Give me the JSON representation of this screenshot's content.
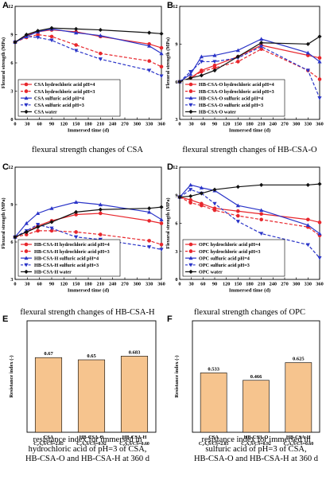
{
  "chart_data": [
    {
      "id": "A",
      "panel_letter": "A",
      "type": "line",
      "caption": "flexural strength changes of CSA",
      "xlabel": "Immersed time (d)",
      "ylabel": "Flexural strength (MPa)",
      "xlim": [
        0,
        360
      ],
      "ylim": [
        0,
        12
      ],
      "x_ticks": [
        0,
        30,
        60,
        90,
        120,
        150,
        180,
        210,
        240,
        270,
        300,
        330,
        360
      ],
      "y_ticks": [
        0,
        3,
        6,
        9,
        12
      ],
      "legend_position": "bottom-left",
      "series": [
        {
          "name": "CSA hydrochloric acid pH=4",
          "color": "#e8262c",
          "marker": "circle",
          "dash": false,
          "x": [
            0,
            28,
            56,
            90,
            150,
            210,
            330,
            360
          ],
          "y": [
            8.2,
            8.9,
            9.3,
            9.5,
            9.3,
            8.8,
            8.0,
            7.6
          ]
        },
        {
          "name": "CSA hydrochloric acid pH=3",
          "color": "#e8262c",
          "marker": "circle",
          "dash": true,
          "x": [
            0,
            28,
            56,
            90,
            150,
            210,
            330,
            360
          ],
          "y": [
            8.2,
            8.7,
            9.0,
            8.8,
            7.9,
            7.0,
            6.2,
            5.6
          ]
        },
        {
          "name": "CSA sulfuric acid pH=4",
          "color": "#2a34c8",
          "marker": "triangle",
          "dash": false,
          "x": [
            0,
            28,
            56,
            90,
            150,
            210,
            330,
            360
          ],
          "y": [
            8.2,
            8.8,
            9.3,
            9.6,
            9.2,
            8.9,
            7.8,
            7.0
          ]
        },
        {
          "name": "CSA sulfuric acid pH=3",
          "color": "#2a34c8",
          "marker": "triangle-down",
          "dash": true,
          "x": [
            0,
            28,
            56,
            90,
            150,
            210,
            330,
            360
          ],
          "y": [
            8.2,
            8.8,
            8.7,
            8.4,
            7.3,
            6.4,
            5.2,
            4.6
          ]
        },
        {
          "name": "CSA water",
          "color": "#111111",
          "marker": "diamond",
          "dash": false,
          "x": [
            0,
            28,
            56,
            90,
            150,
            210,
            330,
            360
          ],
          "y": [
            8.2,
            9.0,
            9.4,
            9.7,
            9.6,
            9.5,
            9.2,
            9.1
          ]
        }
      ]
    },
    {
      "id": "B",
      "panel_letter": "B",
      "type": "line",
      "caption": "flexural strength changes of HB-CSA-O",
      "xlabel": "Immersed time (d)",
      "ylabel": "Flexural strength (MPa)",
      "xlim": [
        0,
        360
      ],
      "ylim": [
        3,
        12
      ],
      "x_ticks": [
        0,
        30,
        60,
        90,
        120,
        150,
        180,
        210,
        240,
        270,
        300,
        330,
        360
      ],
      "y_ticks": [
        3,
        6,
        9,
        12
      ],
      "legend_position": "bottom-left",
      "series": [
        {
          "name": "HB-CSA-O hydrochloric acid pH=4",
          "color": "#e8262c",
          "marker": "circle",
          "dash": false,
          "x": [
            0,
            28,
            56,
            90,
            150,
            210,
            330,
            360
          ],
          "y": [
            6.0,
            6.3,
            6.9,
            7.3,
            8.0,
            8.9,
            8.1,
            7.9
          ]
        },
        {
          "name": "HB-CSA-O hydrochloric acid pH=3",
          "color": "#e8262c",
          "marker": "circle",
          "dash": true,
          "x": [
            0,
            28,
            56,
            90,
            150,
            210,
            330,
            360
          ],
          "y": [
            6.0,
            6.3,
            6.8,
            7.1,
            7.6,
            8.6,
            6.9,
            6.2
          ]
        },
        {
          "name": "HB-CSA-O sulfuric acid pH=4",
          "color": "#2a34c8",
          "marker": "triangle",
          "dash": false,
          "x": [
            0,
            28,
            56,
            90,
            150,
            210,
            330,
            360
          ],
          "y": [
            6.0,
            6.6,
            8.0,
            8.1,
            8.5,
            9.4,
            8.3,
            7.6
          ]
        },
        {
          "name": "HB-CSA-O sulfuric acid pH=3",
          "color": "#2a34c8",
          "marker": "triangle-down",
          "dash": true,
          "x": [
            0,
            28,
            56,
            90,
            150,
            210,
            330,
            360
          ],
          "y": [
            6.0,
            6.8,
            7.6,
            7.6,
            7.9,
            8.8,
            6.9,
            4.7
          ]
        },
        {
          "name": "HB-CSA-O water",
          "color": "#111111",
          "marker": "diamond",
          "dash": false,
          "x": [
            0,
            28,
            56,
            90,
            150,
            210,
            330,
            360
          ],
          "y": [
            6.0,
            6.3,
            6.5,
            6.9,
            8.0,
            9.1,
            9.0,
            9.6
          ]
        }
      ]
    },
    {
      "id": "C",
      "panel_letter": "C",
      "type": "line",
      "caption": "flexural strength changes of HB-CSA-H",
      "xlabel": "Immersed time (d)",
      "ylabel": "Flexural strength (MPa)",
      "xlim": [
        0,
        360
      ],
      "ylim": [
        3,
        12
      ],
      "x_ticks": [
        0,
        30,
        60,
        90,
        120,
        150,
        180,
        210,
        240,
        270,
        300,
        330,
        360
      ],
      "y_ticks": [
        3,
        6,
        9,
        12
      ],
      "legend_position": "bottom-left",
      "series": [
        {
          "name": "HB-CSA-H hydrochloric acid pH=4",
          "color": "#e8262c",
          "marker": "circle",
          "dash": false,
          "x": [
            0,
            28,
            56,
            90,
            150,
            210,
            330,
            360
          ],
          "y": [
            6.4,
            6.8,
            7.3,
            7.7,
            8.2,
            8.3,
            7.7,
            7.5
          ]
        },
        {
          "name": "HB-CSA-H hydrochloric acid pH=3",
          "color": "#e8262c",
          "marker": "circle",
          "dash": true,
          "x": [
            0,
            28,
            56,
            90,
            150,
            210,
            330,
            360
          ],
          "y": [
            6.4,
            6.6,
            6.9,
            6.9,
            6.8,
            6.6,
            6.1,
            5.8
          ]
        },
        {
          "name": "HB-CSA-H sulfuric acid pH=4",
          "color": "#2a34c8",
          "marker": "triangle",
          "dash": false,
          "x": [
            0,
            28,
            56,
            90,
            150,
            210,
            330,
            360
          ],
          "y": [
            6.4,
            7.5,
            8.3,
            8.7,
            9.2,
            9.0,
            8.4,
            7.8
          ]
        },
        {
          "name": "HB-CSA-H sulfuric acid pH=3",
          "color": "#2a34c8",
          "marker": "triangle-down",
          "dash": true,
          "x": [
            0,
            28,
            56,
            90,
            150,
            210,
            330,
            360
          ],
          "y": [
            6.4,
            6.9,
            7.4,
            7.1,
            6.4,
            6.2,
            5.6,
            5.4
          ]
        },
        {
          "name": "HB-CSA-H water",
          "color": "#111111",
          "marker": "diamond",
          "dash": false,
          "x": [
            0,
            28,
            56,
            90,
            150,
            210,
            330,
            360
          ],
          "y": [
            6.4,
            6.8,
            7.2,
            7.6,
            8.4,
            8.6,
            8.7,
            8.8
          ]
        }
      ]
    },
    {
      "id": "D",
      "panel_letter": "D",
      "type": "line",
      "caption": "flexural strength changes of OPC",
      "xlabel": "Immersed time (d)",
      "ylabel": "Flexural strength (MPa)",
      "xlim": [
        0,
        360
      ],
      "ylim": [
        0,
        12
      ],
      "x_ticks": [
        0,
        30,
        60,
        90,
        120,
        150,
        180,
        210,
        240,
        270,
        300,
        330,
        360
      ],
      "y_ticks": [
        0,
        3,
        6,
        9,
        12
      ],
      "legend_position": "bottom-left",
      "series": [
        {
          "name": "OPC hydrochloric acid pH=4",
          "color": "#e8262c",
          "marker": "circle",
          "dash": false,
          "x": [
            0,
            28,
            56,
            90,
            150,
            210,
            330,
            360
          ],
          "y": [
            8.8,
            8.5,
            8.1,
            7.6,
            7.3,
            7.0,
            6.4,
            6.1
          ]
        },
        {
          "name": "OPC hydrochloric acid pH=3",
          "color": "#e8262c",
          "marker": "circle",
          "dash": true,
          "x": [
            0,
            28,
            56,
            90,
            150,
            210,
            330,
            360
          ],
          "y": [
            8.8,
            8.2,
            7.9,
            7.4,
            6.8,
            6.4,
            5.6,
            4.7
          ]
        },
        {
          "name": "OPC sulfuric acid pH=4",
          "color": "#2a34c8",
          "marker": "triangle",
          "dash": false,
          "x": [
            0,
            28,
            56,
            90,
            150,
            210,
            330,
            360
          ],
          "y": [
            8.8,
            10.1,
            9.8,
            9.5,
            7.9,
            7.4,
            5.8,
            4.9
          ]
        },
        {
          "name": "OPC sulfuric acid pH=3",
          "color": "#2a34c8",
          "marker": "triangle-down",
          "dash": true,
          "x": [
            0,
            28,
            56,
            90,
            150,
            210,
            330,
            360
          ],
          "y": [
            8.8,
            9.6,
            9.2,
            8.1,
            6.2,
            4.9,
            3.7,
            2.3
          ]
        },
        {
          "name": "OPC water",
          "color": "#111111",
          "marker": "diamond",
          "dash": false,
          "x": [
            0,
            28,
            56,
            90,
            150,
            210,
            330,
            360
          ],
          "y": [
            8.8,
            8.9,
            9.2,
            9.6,
            9.9,
            10.1,
            10.1,
            10.2
          ]
        }
      ]
    },
    {
      "id": "E",
      "panel_letter": "E",
      "type": "bar",
      "caption": "resistance index for immersed in hydrochloric acid of pH=3 of CSA, HB-CSA-O and HB-CSA-H at 360 d",
      "ylabel": "Resistance index (-)",
      "ylim": [
        0,
        1.0
      ],
      "categories": [
        "CSA",
        "HB-CSA-O",
        "HB-CSA-H"
      ],
      "category_sublabels": [
        "C₄A₃S̅/CS̅=2.85",
        "C₄A₃S̅/CS̅=0.92",
        "C₄A₃S̅/CS̅=0.60"
      ],
      "values": [
        0.67,
        0.65,
        0.683
      ],
      "value_labels": [
        "0.67",
        "0.65",
        "0.683"
      ],
      "bar_color": "#f6c48e"
    },
    {
      "id": "F",
      "panel_letter": "F",
      "type": "bar",
      "caption": "resistance index for immersed in sulfuric acid of pH=3 of CSA, HB-CSA-O and HB-CSA-H at 360 d",
      "ylabel": "Resistance index (-)",
      "ylim": [
        0,
        1.0
      ],
      "categories": [
        "CSA",
        "HB-CSA-O",
        "HB-CSA-H"
      ],
      "category_sublabels": [
        "C₄A₃S̅/CS̅=2.85",
        "C₄A₃S̅/CS̅=0.92",
        "C₄A₃S̅/CS̅=0.60"
      ],
      "values": [
        0.533,
        0.466,
        0.625
      ],
      "value_labels": [
        "0.533",
        "0.466",
        "0.625"
      ],
      "bar_color": "#f6c48e"
    }
  ]
}
